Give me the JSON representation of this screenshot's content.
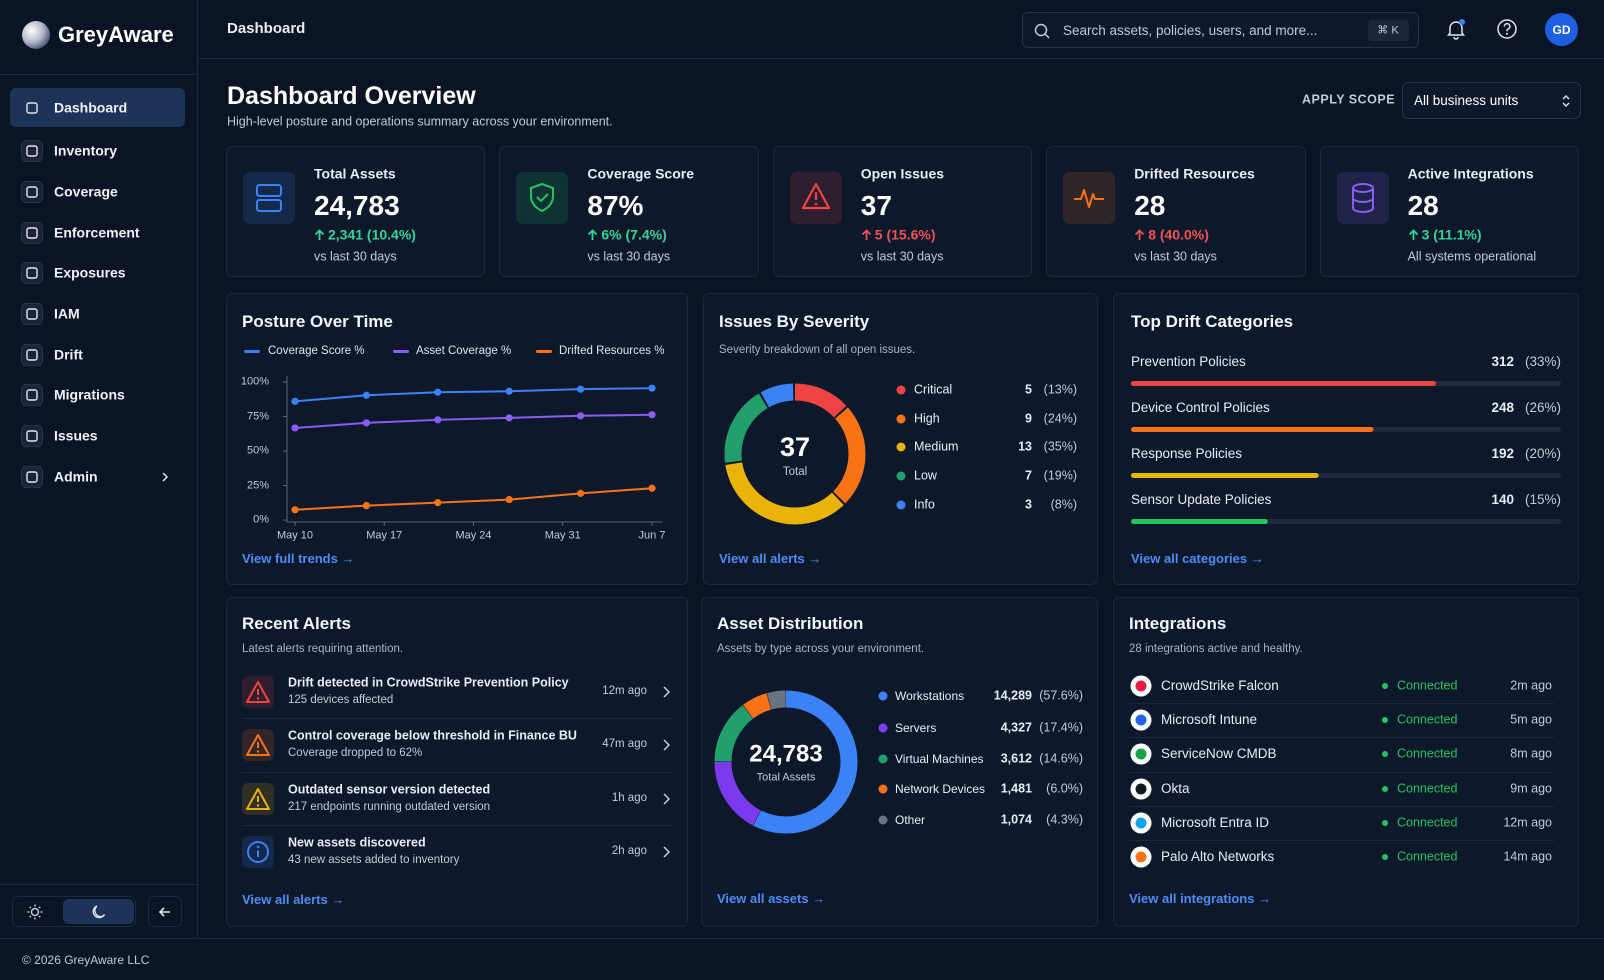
{
  "brand": "GreyAware",
  "nav": [
    "Dashboard",
    "Inventory",
    "Coverage",
    "Enforcement",
    "Exposures",
    "IAM",
    "Drift",
    "Migrations",
    "Issues",
    "Admin"
  ],
  "nav_active": 0,
  "header": {
    "title": "Dashboard",
    "search_placeholder": "Search assets, policies, users, and more...",
    "shortcut": "⌘ K",
    "avatar": "GD"
  },
  "page": {
    "title": "Dashboard Overview",
    "subtitle": "High-level posture and operations summary across your environment.",
    "scope_label": "APPLY SCOPE",
    "scope_value": "All business units"
  },
  "kpis": [
    {
      "title": "Total Assets",
      "value": "24,783",
      "change": "2,341 (10.4%)",
      "note": "vs last 30 days",
      "color": "#3b82f6",
      "change_color": "#34d399"
    },
    {
      "title": "Coverage Score",
      "value": "87%",
      "change": "6% (7.4%)",
      "note": "vs last 30 days",
      "color": "#22c55e",
      "change_color": "#34d399"
    },
    {
      "title": "Open Issues",
      "value": "37",
      "change": "5 (15.6%)",
      "note": "vs last 30 days",
      "color": "#ef4444",
      "change_color": "#f05252"
    },
    {
      "title": "Drifted Resources",
      "value": "28",
      "change": "8 (40.0%)",
      "note": "vs last 30 days",
      "color": "#f97316",
      "change_color": "#f05252"
    },
    {
      "title": "Active Integrations",
      "value": "28",
      "change": "3 (11.1%)",
      "note": "All systems operational",
      "color": "#8b5cf6",
      "change_color": "#34d399"
    }
  ],
  "posture": {
    "title": "Posture Over Time",
    "link": "View full trends →",
    "chart_data": {
      "type": "line",
      "x": [
        0,
        5.6,
        11.2,
        16.8,
        22.4,
        28
      ],
      "xlim": [
        0,
        28
      ],
      "xticks": [
        {
          "value": 0,
          "label": "May 10"
        },
        {
          "value": 7,
          "label": "May 17"
        },
        {
          "value": 14,
          "label": "May 24"
        },
        {
          "value": 21,
          "label": "May 31"
        },
        {
          "value": 28,
          "label": "Jun 7"
        }
      ],
      "ylim": [
        0,
        100
      ],
      "yticks": [
        {
          "value": 0,
          "label": "0%"
        },
        {
          "value": 25,
          "label": "25%"
        },
        {
          "value": 50,
          "label": "50%"
        },
        {
          "value": 75,
          "label": "75%"
        },
        {
          "value": 100,
          "label": "100%"
        }
      ],
      "series": [
        {
          "name": "Coverage Score %",
          "color": "#3b82f6",
          "values": [
            86,
            90.4,
            92.6,
            93.3,
            94.8,
            95.5
          ]
        },
        {
          "name": "Asset Coverage %",
          "color": "#8b5cf6",
          "values": [
            66.7,
            70.4,
            72.6,
            74,
            75.5,
            76.3
          ]
        },
        {
          "name": "Drifted Resources %",
          "color": "#f97316",
          "values": [
            7.4,
            10.4,
            12.6,
            14.8,
            19.3,
            23
          ]
        }
      ]
    }
  },
  "severity": {
    "title": "Issues By Severity",
    "subtitle": "Severity breakdown of all open issues.",
    "total": 37,
    "total_label": "Total",
    "link": "View all alerts →",
    "chart_data": {
      "type": "donut",
      "categories": [
        "Critical",
        "High",
        "Medium",
        "Low",
        "Info"
      ],
      "values": [
        5,
        9,
        13,
        7,
        3
      ],
      "percent_labels": [
        "(13%)",
        "(24%)",
        "(35%)",
        "(19%)",
        "(8%)"
      ],
      "colors": [
        "#ef4444",
        "#f97316",
        "#eab308",
        "#22a06b",
        "#3b82f6"
      ]
    }
  },
  "drift": {
    "title": "Top Drift Categories",
    "link": "View all categories →",
    "chart_data": {
      "type": "bar",
      "orientation": "horizontal",
      "categories": [
        "Prevention Policies",
        "Device Control Policies",
        "Response Policies",
        "Sensor Update Policies"
      ],
      "values": [
        312,
        248,
        192,
        140
      ],
      "percent_labels": [
        "(33%)",
        "(26%)",
        "(20%)",
        "(15%)"
      ],
      "colors": [
        "#ef4444",
        "#f97316",
        "#eab308",
        "#22c55e"
      ],
      "xlim": [
        0,
        440
      ]
    }
  },
  "alerts": {
    "title": "Recent Alerts",
    "subtitle": "Latest alerts requiring attention.",
    "link": "View all alerts →",
    "items": [
      {
        "title": "Drift detected in CrowdStrike Prevention Policy",
        "desc": "125 devices affected",
        "time": "12m ago",
        "icon": "warning",
        "color": "#ef4444"
      },
      {
        "title": "Control coverage below threshold in Finance BU",
        "desc": "Coverage dropped to 62%",
        "time": "47m ago",
        "icon": "warning",
        "color": "#f97316"
      },
      {
        "title": "Outdated sensor version detected",
        "desc": "217 endpoints running outdated version",
        "time": "1h ago",
        "icon": "warning",
        "color": "#eab308"
      },
      {
        "title": "New assets discovered",
        "desc": "43 new assets added to inventory",
        "time": "2h ago",
        "icon": "info",
        "color": "#3b82f6"
      }
    ]
  },
  "assets": {
    "title": "Asset Distribution",
    "subtitle": "Assets by type across your environment.",
    "total": "24,783",
    "total_label": "Total Assets",
    "link": "View all assets →",
    "chart_data": {
      "type": "donut",
      "categories": [
        "Workstations",
        "Servers",
        "Virtual Machines",
        "Network Devices",
        "Other"
      ],
      "values": [
        14289,
        4327,
        3612,
        1481,
        1074
      ],
      "value_labels": [
        "14,289",
        "4,327",
        "3,612",
        "1,481",
        "1,074"
      ],
      "percent_labels": [
        "(57.6%)",
        "(17.4%)",
        "(14.6%)",
        "(6.0%)",
        "(4.3%)"
      ],
      "colors": [
        "#3b82f6",
        "#7c3aed",
        "#22a06b",
        "#f97316",
        "#6b7280"
      ]
    }
  },
  "integrations": {
    "title": "Integrations",
    "subtitle": "28 integrations active and healthy.",
    "link": "View all integrations →",
    "items": [
      {
        "name": "CrowdStrike Falcon",
        "status": "Connected",
        "time": "2m ago",
        "icon_color": "#e11d48"
      },
      {
        "name": "Microsoft Intune",
        "status": "Connected",
        "time": "5m ago",
        "icon_color": "#2563eb"
      },
      {
        "name": "ServiceNow CMDB",
        "status": "Connected",
        "time": "8m ago",
        "icon_color": "#16a34a"
      },
      {
        "name": "Okta",
        "status": "Connected",
        "time": "9m ago",
        "icon_color": "#111827"
      },
      {
        "name": "Microsoft Entra ID",
        "status": "Connected",
        "time": "12m ago",
        "icon_color": "#0ea5e9"
      },
      {
        "name": "Palo Alto Networks",
        "status": "Connected",
        "time": "14m ago",
        "icon_color": "#f97316"
      }
    ]
  },
  "footer": "© 2026 GreyAware LLC"
}
